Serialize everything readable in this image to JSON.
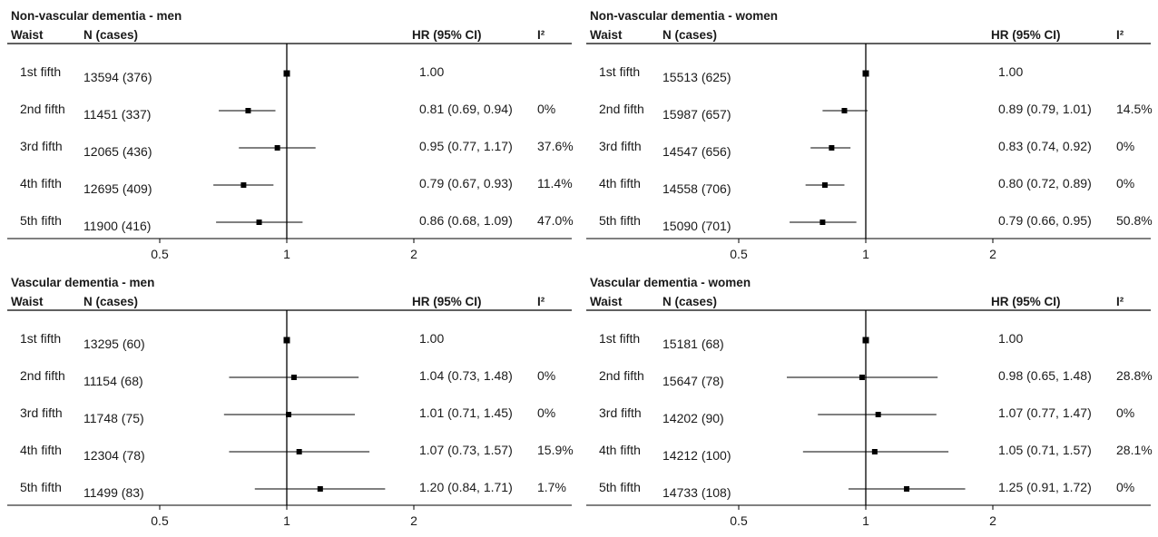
{
  "panels": [
    {
      "title": "Non-vascular dementia - men",
      "header": {
        "col1": "Waist",
        "col2": "N (cases)",
        "col3": "HR (95% CI)",
        "col4": "I²"
      },
      "rows": [
        {
          "label": "1st fifth",
          "n": "13594 (376)",
          "hr_text": "1.00",
          "i2": ""
        },
        {
          "label": "2nd fifth",
          "n": "11451 (337)",
          "hr_text": "0.81 (0.69, 0.94)",
          "i2": "0%"
        },
        {
          "label": "3rd fifth",
          "n": "12065 (436)",
          "hr_text": "0.95 (0.77, 1.17)",
          "i2": "37.6%"
        },
        {
          "label": "4th fifth",
          "n": "12695 (409)",
          "hr_text": "0.79 (0.67, 0.93)",
          "i2": "11.4%"
        },
        {
          "label": "5th fifth",
          "n": "11900 (416)",
          "hr_text": "0.86 (0.68, 1.09)",
          "i2": "47.0%"
        }
      ]
    },
    {
      "title": "Non-vascular dementia - women",
      "header": {
        "col1": "Waist",
        "col2": "N (cases)",
        "col3": "HR (95% CI)",
        "col4": "I²"
      },
      "rows": [
        {
          "label": "1st fifth",
          "n": "15513 (625)",
          "hr_text": "1.00",
          "i2": ""
        },
        {
          "label": "2nd fifth",
          "n": "15987 (657)",
          "hr_text": "0.89 (0.79, 1.01)",
          "i2": "14.5%"
        },
        {
          "label": "3rd fifth",
          "n": "14547 (656)",
          "hr_text": "0.83 (0.74, 0.92)",
          "i2": "0%"
        },
        {
          "label": "4th fifth",
          "n": "14558 (706)",
          "hr_text": "0.80 (0.72, 0.89)",
          "i2": "0%"
        },
        {
          "label": "5th fifth",
          "n": "15090 (701)",
          "hr_text": "0.79 (0.66, 0.95)",
          "i2": "50.8%"
        }
      ]
    },
    {
      "title": "Vascular dementia - men",
      "header": {
        "col1": "Waist",
        "col2": "N (cases)",
        "col3": "HR (95% CI)",
        "col4": "I²"
      },
      "rows": [
        {
          "label": "1st fifth",
          "n": "13295 (60)",
          "hr_text": "1.00",
          "i2": ""
        },
        {
          "label": "2nd fifth",
          "n": "11154 (68)",
          "hr_text": "1.04 (0.73, 1.48)",
          "i2": "0%"
        },
        {
          "label": "3rd fifth",
          "n": "11748 (75)",
          "hr_text": "1.01 (0.71, 1.45)",
          "i2": "0%"
        },
        {
          "label": "4th fifth",
          "n": "12304 (78)",
          "hr_text": "1.07 (0.73, 1.57)",
          "i2": "15.9%"
        },
        {
          "label": "5th fifth",
          "n": "11499 (83)",
          "hr_text": "1.20 (0.84, 1.71)",
          "i2": "1.7%"
        }
      ]
    },
    {
      "title": "Vascular dementia - women",
      "header": {
        "col1": "Waist",
        "col2": "N (cases)",
        "col3": "HR (95% CI)",
        "col4": "I²"
      },
      "rows": [
        {
          "label": "1st fifth",
          "n": "15181 (68)",
          "hr_text": "1.00",
          "i2": ""
        },
        {
          "label": "2nd fifth",
          "n": "15647 (78)",
          "hr_text": "0.98 (0.65, 1.48)",
          "i2": "28.8%"
        },
        {
          "label": "3rd fifth",
          "n": "14202 (90)",
          "hr_text": "1.07 (0.77, 1.47)",
          "i2": "0%"
        },
        {
          "label": "4th fifth",
          "n": "14212 (100)",
          "hr_text": "1.05 (0.71, 1.57)",
          "i2": "28.1%"
        },
        {
          "label": "5th fifth",
          "n": "14733 (108)",
          "hr_text": "1.25 (0.91, 1.72)",
          "i2": "0%"
        }
      ]
    }
  ],
  "chart_data": [
    {
      "type": "forest",
      "title": "Non-vascular dementia - men",
      "x_scale": "log",
      "x_ticks": [
        0.5,
        1,
        2
      ],
      "x_tick_labels": [
        "0.5",
        "1",
        "2"
      ],
      "reference_line": 1,
      "categories": [
        "1st fifth",
        "2nd fifth",
        "3rd fifth",
        "4th fifth",
        "5th fifth"
      ],
      "hr": [
        1.0,
        0.81,
        0.95,
        0.79,
        0.86
      ],
      "lower": [
        null,
        0.69,
        0.77,
        0.67,
        0.68
      ],
      "upper": [
        null,
        0.94,
        1.17,
        0.93,
        1.09
      ]
    },
    {
      "type": "forest",
      "title": "Non-vascular dementia - women",
      "x_scale": "log",
      "x_ticks": [
        0.5,
        1,
        2
      ],
      "x_tick_labels": [
        "0.5",
        "1",
        "2"
      ],
      "reference_line": 1,
      "categories": [
        "1st fifth",
        "2nd fifth",
        "3rd fifth",
        "4th fifth",
        "5th fifth"
      ],
      "hr": [
        1.0,
        0.89,
        0.83,
        0.8,
        0.79
      ],
      "lower": [
        null,
        0.79,
        0.74,
        0.72,
        0.66
      ],
      "upper": [
        null,
        1.01,
        0.92,
        0.89,
        0.95
      ]
    },
    {
      "type": "forest",
      "title": "Vascular dementia - men",
      "x_scale": "log",
      "x_ticks": [
        0.5,
        1,
        2
      ],
      "x_tick_labels": [
        "0.5",
        "1",
        "2"
      ],
      "reference_line": 1,
      "categories": [
        "1st fifth",
        "2nd fifth",
        "3rd fifth",
        "4th fifth",
        "5th fifth"
      ],
      "hr": [
        1.0,
        1.04,
        1.01,
        1.07,
        1.2
      ],
      "lower": [
        null,
        0.73,
        0.71,
        0.73,
        0.84
      ],
      "upper": [
        null,
        1.48,
        1.45,
        1.57,
        1.71
      ]
    },
    {
      "type": "forest",
      "title": "Vascular dementia - women",
      "x_scale": "log",
      "x_ticks": [
        0.5,
        1,
        2
      ],
      "x_tick_labels": [
        "0.5",
        "1",
        "2"
      ],
      "reference_line": 1,
      "categories": [
        "1st fifth",
        "2nd fifth",
        "3rd fifth",
        "4th fifth",
        "5th fifth"
      ],
      "hr": [
        1.0,
        0.98,
        1.07,
        1.05,
        1.25
      ],
      "lower": [
        null,
        0.65,
        0.77,
        0.71,
        0.91
      ],
      "upper": [
        null,
        1.48,
        1.47,
        1.57,
        1.72
      ]
    }
  ]
}
